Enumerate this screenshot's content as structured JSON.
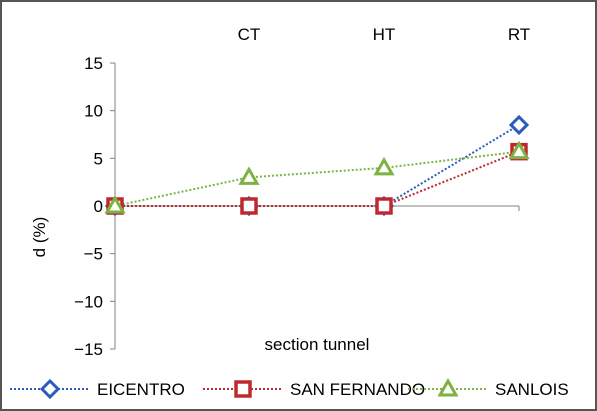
{
  "chart_data": {
    "type": "line",
    "categories": [
      "",
      "CT",
      "HT",
      "RT"
    ],
    "ylabel": "d (%)",
    "xlabel": "section tunnel",
    "ylim": [
      -15,
      15
    ],
    "yticks": [
      15,
      10,
      5,
      0,
      -5,
      -10,
      -15
    ],
    "ytick_labels": [
      "15",
      "10",
      "5",
      "0",
      "−5",
      "−10",
      "−15"
    ],
    "grid": false,
    "legend_position": "bottom",
    "series": [
      {
        "name": "EICENTRO",
        "marker": "diamond",
        "color": "#2a5bbd",
        "values": [
          0,
          0,
          0,
          8.5
        ]
      },
      {
        "name": "SAN FERNANDO",
        "marker": "square",
        "color": "#c0282e",
        "values": [
          0,
          0,
          0,
          5.7
        ]
      },
      {
        "name": "SANLOIS",
        "marker": "triangle",
        "color": "#7cb342",
        "values": [
          0,
          3,
          4,
          5.7
        ]
      }
    ]
  }
}
